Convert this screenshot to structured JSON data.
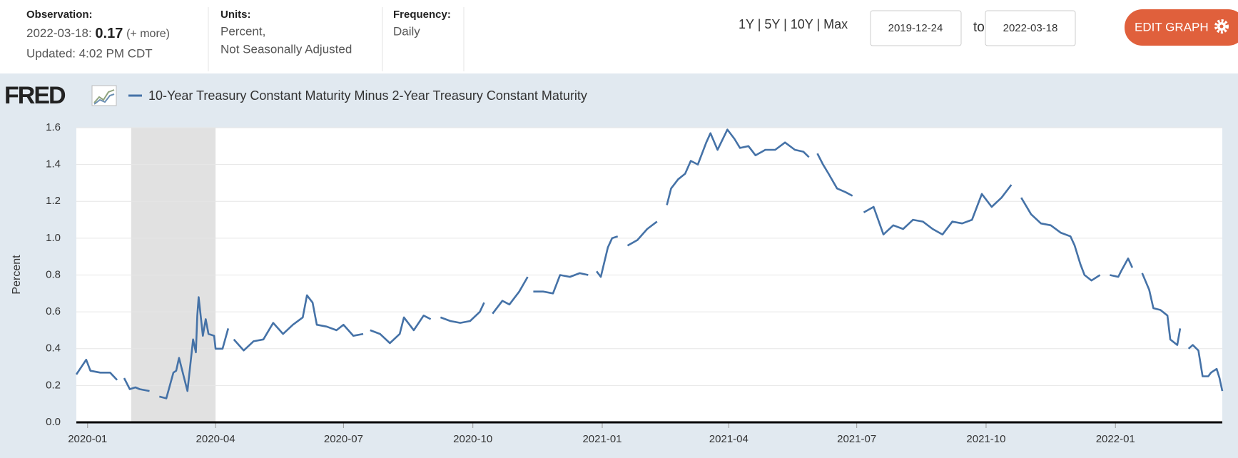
{
  "header": {
    "observation": {
      "label": "Observation:",
      "date": "2022-03-18:",
      "value": 0.17,
      "more": "(+ more)",
      "updated": "Updated: 4:02 PM CDT"
    },
    "units": {
      "label": "Units:",
      "lines": [
        "Percent,",
        "Not Seasonally Adjusted"
      ]
    },
    "frequency": {
      "label": "Frequency:",
      "value": "Daily"
    },
    "ranges": [
      "1Y",
      "5Y",
      "10Y",
      "Max"
    ],
    "start": "2019-12-24",
    "to": "to",
    "end": "2022-03-18",
    "edit": "EDIT GRAPH"
  },
  "logo": "FRED",
  "chart_data": {
    "type": "line",
    "ylabel": "Percent",
    "series": [
      {
        "name": "10-Year Treasury Constant Maturity Minus 2-Year Treasury Constant Maturity",
        "color": "#4572a7",
        "x": [
          "2019-12-24",
          "2019-12-31",
          "2020-01-03",
          "2020-01-10",
          "2020-01-17",
          "2020-01-22",
          "2020-01-24",
          "2020-01-27",
          "2020-01-31",
          "2020-02-04",
          "2020-02-07",
          "2020-02-14",
          "2020-02-18",
          "2020-02-21",
          "2020-02-26",
          "2020-03-02",
          "2020-03-04",
          "2020-03-06",
          "2020-03-09",
          "2020-03-12",
          "2020-03-16",
          "2020-03-18",
          "2020-03-19",
          "2020-03-20",
          "2020-03-23",
          "2020-03-25",
          "2020-03-27",
          "2020-03-31",
          "2020-04-01",
          "2020-04-06",
          "2020-04-10",
          "2020-04-13",
          "2020-04-14",
          "2020-04-21",
          "2020-04-28",
          "2020-05-05",
          "2020-05-12",
          "2020-05-19",
          "2020-05-26",
          "2020-06-02",
          "2020-06-05",
          "2020-06-09",
          "2020-06-12",
          "2020-06-19",
          "2020-06-26",
          "2020-07-01",
          "2020-07-08",
          "2020-07-15",
          "2020-07-17",
          "2020-07-20",
          "2020-07-27",
          "2020-08-03",
          "2020-08-10",
          "2020-08-13",
          "2020-08-20",
          "2020-08-27",
          "2020-09-01",
          "2020-09-04",
          "2020-09-08",
          "2020-09-15",
          "2020-09-22",
          "2020-09-29",
          "2020-10-06",
          "2020-10-09",
          "2020-10-12",
          "2020-10-15",
          "2020-10-22",
          "2020-10-27",
          "2020-11-03",
          "2020-11-09",
          "2020-11-11",
          "2020-11-13",
          "2020-11-20",
          "2020-11-27",
          "2020-12-02",
          "2020-12-09",
          "2020-12-16",
          "2020-12-22",
          "2020-12-24",
          "2020-12-28",
          "2020-12-31",
          "2021-01-05",
          "2021-01-08",
          "2021-01-12",
          "2021-01-15",
          "2021-01-19",
          "2021-01-26",
          "2021-02-02",
          "2021-02-09",
          "2021-02-12",
          "2021-02-16",
          "2021-02-19",
          "2021-02-24",
          "2021-03-01",
          "2021-03-05",
          "2021-03-10",
          "2021-03-16",
          "2021-03-19",
          "2021-03-24",
          "2021-03-31",
          "2021-04-05",
          "2021-04-09",
          "2021-04-15",
          "2021-04-20",
          "2021-04-27",
          "2021-05-04",
          "2021-05-11",
          "2021-05-18",
          "2021-05-24",
          "2021-05-28",
          "2021-06-01",
          "2021-06-03",
          "2021-06-07",
          "2021-06-11",
          "2021-06-17",
          "2021-06-23",
          "2021-06-28",
          "2021-07-01",
          "2021-07-06",
          "2021-07-13",
          "2021-07-20",
          "2021-07-27",
          "2021-08-03",
          "2021-08-10",
          "2021-08-17",
          "2021-08-24",
          "2021-08-31",
          "2021-09-07",
          "2021-09-14",
          "2021-09-21",
          "2021-09-28",
          "2021-10-05",
          "2021-10-12",
          "2021-10-19",
          "2021-10-21",
          "2021-10-26",
          "2021-11-02",
          "2021-11-09",
          "2021-11-16",
          "2021-11-23",
          "2021-11-30",
          "2021-12-03",
          "2021-12-07",
          "2021-12-10",
          "2021-12-15",
          "2021-12-21",
          "2021-12-24",
          "2021-12-28",
          "2022-01-03",
          "2022-01-05",
          "2022-01-10",
          "2022-01-13",
          "2022-01-18",
          "2022-01-20",
          "2022-01-25",
          "2022-01-28",
          "2022-02-02",
          "2022-02-07",
          "2022-02-09",
          "2022-02-14",
          "2022-02-16",
          "2022-02-18",
          "2022-02-22",
          "2022-02-25",
          "2022-03-01",
          "2022-03-04",
          "2022-03-08",
          "2022-03-10",
          "2022-03-14",
          "2022-03-16",
          "2022-03-18"
        ],
        "values": [
          0.26,
          0.34,
          0.28,
          0.27,
          0.27,
          0.23,
          null,
          0.24,
          0.18,
          0.19,
          0.18,
          0.17,
          null,
          0.14,
          0.13,
          0.27,
          0.28,
          0.35,
          0.26,
          0.17,
          0.45,
          0.38,
          0.58,
          0.68,
          0.47,
          0.56,
          0.48,
          0.47,
          0.4,
          0.4,
          0.51,
          null,
          0.45,
          0.39,
          0.44,
          0.45,
          0.54,
          0.48,
          0.53,
          0.57,
          0.69,
          0.65,
          0.53,
          0.52,
          0.5,
          0.53,
          0.47,
          0.48,
          null,
          0.5,
          0.48,
          0.43,
          0.48,
          0.57,
          0.5,
          0.58,
          0.56,
          null,
          0.57,
          0.55,
          0.54,
          0.55,
          0.6,
          0.65,
          null,
          0.59,
          0.66,
          0.64,
          0.71,
          0.79,
          null,
          0.71,
          0.71,
          0.7,
          0.8,
          0.79,
          0.81,
          0.8,
          null,
          0.82,
          0.79,
          0.95,
          1.0,
          1.01,
          null,
          0.96,
          0.99,
          1.05,
          1.09,
          null,
          1.18,
          1.27,
          1.32,
          1.35,
          1.42,
          1.4,
          1.52,
          1.57,
          1.48,
          1.59,
          1.54,
          1.49,
          1.5,
          1.45,
          1.48,
          1.48,
          1.52,
          1.48,
          1.47,
          1.44,
          null,
          1.46,
          1.4,
          1.35,
          1.27,
          1.25,
          1.23,
          null,
          1.14,
          1.17,
          1.02,
          1.07,
          1.05,
          1.1,
          1.09,
          1.05,
          1.02,
          1.09,
          1.08,
          1.1,
          1.24,
          1.17,
          1.22,
          1.29,
          null,
          1.22,
          1.13,
          1.08,
          1.07,
          1.03,
          1.01,
          0.96,
          0.86,
          0.8,
          0.77,
          0.8,
          null,
          0.8,
          0.79,
          0.82,
          0.89,
          0.84,
          null,
          0.81,
          0.72,
          0.62,
          0.61,
          0.58,
          0.45,
          0.42,
          0.51,
          null,
          0.4,
          0.42,
          0.39,
          0.25,
          0.25,
          0.27,
          0.29,
          0.24,
          0.17
        ]
      }
    ],
    "xlim": [
      "2019-12-24",
      "2022-03-18"
    ],
    "xticks": [
      "2020-01",
      "2020-04",
      "2020-07",
      "2020-10",
      "2021-01",
      "2021-04",
      "2021-07",
      "2021-10",
      "2022-01"
    ],
    "ylim": [
      0,
      1.6
    ],
    "yticks": [
      {
        "value": 0,
        "label": "0.0"
      },
      0.2,
      0.4,
      0.6,
      0.8,
      {
        "value": 1,
        "label": "1.0"
      },
      1.2,
      1.4,
      1.6
    ],
    "grid": true,
    "recession": [
      "2020-02-01",
      "2020-04-01"
    ]
  }
}
